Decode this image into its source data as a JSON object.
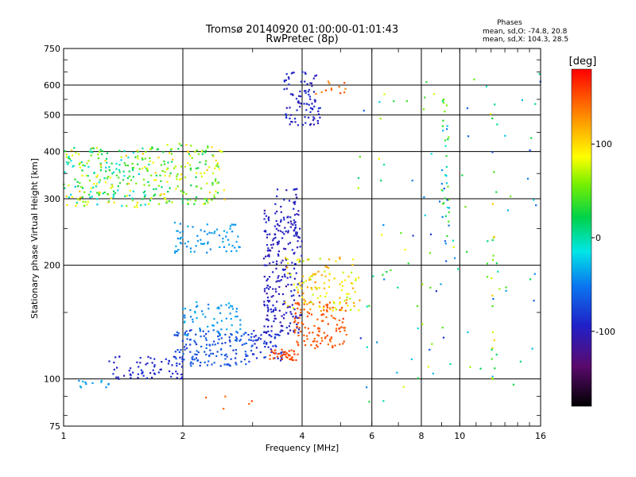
{
  "chart_data": {
    "type": "scatter",
    "title": "Tromsø 20140920 01:00:00-01:01:43",
    "subtitle": "RwPretec (8p)",
    "xlabel": "Frequency [MHz]",
    "ylabel": "Stationary phase Virtual Height [km]",
    "x_scale": "log",
    "y_scale": "log",
    "xlim": [
      1,
      16
    ],
    "ylim": [
      75,
      750
    ],
    "x_ticks": [
      1,
      2,
      4,
      6,
      8,
      10,
      16
    ],
    "y_ticks": [
      75,
      100,
      200,
      300,
      400,
      500,
      600,
      750
    ],
    "grid": true,
    "legend": {
      "title": "Phases",
      "lines": [
        "mean, sd,O: -74.8, 20.8",
        "mean, sd,X: 104.3, 28.5"
      ]
    },
    "colorbar": {
      "label": "[deg]",
      "range": [
        -180,
        180
      ],
      "ticks": [
        100,
        0,
        -100
      ]
    },
    "clusters": [
      {
        "x": [
          1.0,
          1.65
        ],
        "y": [
          285,
          410
        ],
        "phase": 40,
        "spread": 140,
        "n": 220
      },
      {
        "x": [
          1.65,
          2.55
        ],
        "y": [
          290,
          420
        ],
        "phase": 60,
        "spread": 100,
        "n": 160
      },
      {
        "x": [
          1.9,
          2.8
        ],
        "y": [
          215,
          260
        ],
        "phase": -40,
        "spread": 15,
        "n": 70
      },
      {
        "x": [
          1.05,
          1.3
        ],
        "y": [
          95,
          100
        ],
        "phase": -40,
        "spread": 15,
        "n": 12
      },
      {
        "x": [
          1.3,
          2.0
        ],
        "y": [
          100,
          115
        ],
        "phase": -90,
        "spread": 20,
        "n": 70
      },
      {
        "x": [
          1.9,
          3.0
        ],
        "y": [
          108,
          135
        ],
        "phase": -70,
        "spread": 25,
        "n": 150
      },
      {
        "x": [
          2.0,
          2.8
        ],
        "y": [
          130,
          160
        ],
        "phase": -40,
        "spread": 20,
        "n": 60
      },
      {
        "x": [
          3.0,
          3.6
        ],
        "y": [
          112,
          135
        ],
        "phase": -85,
        "spread": 20,
        "n": 60
      },
      {
        "x": [
          3.2,
          4.0
        ],
        "y": [
          130,
          280
        ],
        "phase": -100,
        "spread": 25,
        "n": 220
      },
      {
        "x": [
          3.4,
          3.9
        ],
        "y": [
          230,
          320
        ],
        "phase": -95,
        "spread": 20,
        "n": 40
      },
      {
        "x": [
          3.3,
          3.9
        ],
        "y": [
          112,
          120
        ],
        "phase": 155,
        "spread": 12,
        "n": 40
      },
      {
        "x": [
          3.8,
          5.2
        ],
        "y": [
          120,
          160
        ],
        "phase": 150,
        "spread": 15,
        "n": 120
      },
      {
        "x": [
          3.6,
          5.6
        ],
        "y": [
          150,
          210
        ],
        "phase": 100,
        "spread": 70,
        "n": 120
      },
      {
        "x": [
          3.6,
          4.5
        ],
        "y": [
          470,
          650
        ],
        "phase": -95,
        "spread": 25,
        "n": 90
      },
      {
        "x": [
          4.3,
          5.2
        ],
        "y": [
          560,
          640
        ],
        "phase": 140,
        "spread": 30,
        "n": 12
      },
      {
        "x": [
          5.5,
          16.0
        ],
        "y": [
          80,
          650
        ],
        "phase": 0,
        "spread": 180,
        "n": 110
      },
      {
        "x": [
          9.0,
          9.4
        ],
        "y": [
          200,
          560
        ],
        "phase": 0,
        "spread": 140,
        "n": 40
      },
      {
        "x": [
          12.0,
          12.4
        ],
        "y": [
          100,
          650
        ],
        "phase": 60,
        "spread": 110,
        "n": 20
      },
      {
        "x": [
          2.1,
          3.2
        ],
        "y": [
          82,
          90
        ],
        "phase": 150,
        "spread": 20,
        "n": 5
      }
    ]
  }
}
